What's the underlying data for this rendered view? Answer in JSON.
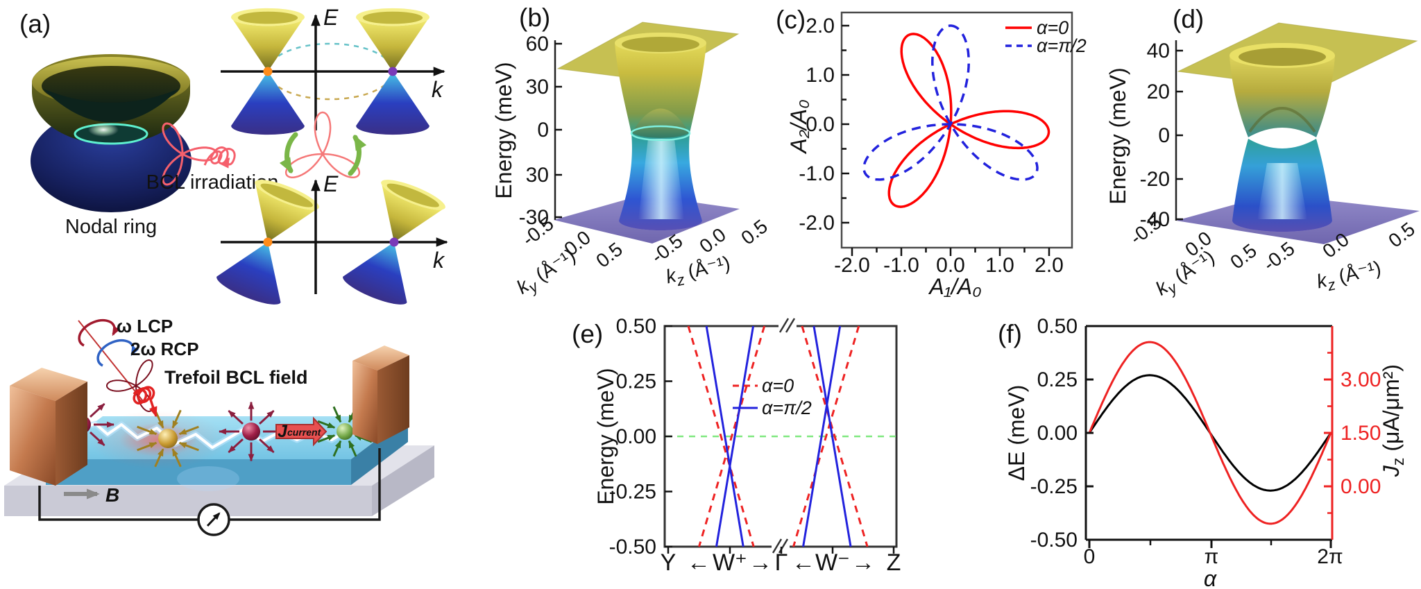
{
  "figure": {
    "background": "#ffffff",
    "accent_red": "#ff0000",
    "accent_blue": "#2222dd",
    "fermi_green": "#7fe87f"
  },
  "panels": {
    "a": {
      "label": "(a)",
      "nodal_ring_caption": "Nodal ring",
      "bcl_caption": "BCL irradiation",
      "diagram_top": {
        "e_label": "E",
        "k_label": "k"
      },
      "diagram_bottom": {
        "e_label": "E",
        "k_label": "k"
      },
      "device": {
        "lcp_label": "ω LCP",
        "rcp_label": "2ω RCP",
        "trefoil_label": "Trefoil BCL field",
        "current_j": "J",
        "current_word": "current",
        "b_label": "B"
      }
    },
    "b": {
      "label": "(b)",
      "z_label": "Energy (meV)",
      "z_ticks": [
        "60",
        "30",
        "0",
        "30",
        "-30"
      ],
      "ky_base": "k",
      "ky_sub": "y",
      "ky_unit": " (Å⁻¹)",
      "kz_base": "k",
      "kz_sub": "z",
      "kz_unit": " (Å⁻¹)",
      "ky_ticks": [
        "-0.5",
        "0.0",
        "0.5"
      ],
      "kz_ticks": [
        "-0.5",
        "0.0",
        "0.5"
      ]
    },
    "c": {
      "label": "(c)",
      "x_label": "A₁/A₀",
      "y_label": "A₂/A₀",
      "x_ticks": [
        "-2.0",
        "-1.0",
        "0.0",
        "1.0",
        "2.0"
      ],
      "y_ticks": [
        "2.0",
        "1.0",
        "0.0",
        "-1.0",
        "-2.0"
      ],
      "legend": [
        {
          "text": "α=0",
          "color": "#ff0000",
          "style": "solid"
        },
        {
          "text": "α=π/2",
          "color": "#2222dd",
          "style": "dashed"
        }
      ]
    },
    "d": {
      "label": "(d)",
      "z_label": "Energy (meV)",
      "z_ticks": [
        "40",
        "20",
        "0",
        "-20",
        "-40"
      ],
      "ky_base": "k",
      "ky_sub": "y",
      "ky_unit": " (Å⁻¹)",
      "kz_base": "k",
      "kz_sub": "z",
      "kz_unit": " (Å⁻¹)",
      "ky_ticks": [
        "-0.5",
        "0.0",
        "0.5"
      ],
      "kz_ticks": [
        "-0.5",
        "0.0",
        "0.5"
      ]
    },
    "e": {
      "label": "(e)",
      "y_label": "Energy (meV)",
      "y_ticks": [
        "0.50",
        "0.25",
        "0.00",
        "-0.25",
        "-0.50"
      ],
      "x_items": [
        "Y",
        "←",
        "W⁺",
        "→",
        "Γ",
        "←",
        "W⁻",
        "→",
        "Z"
      ],
      "legend": [
        {
          "text": "α=0",
          "color": "#ee2222",
          "style": "dashed"
        },
        {
          "text": "α=π/2",
          "color": "#2222dd",
          "style": "solid"
        }
      ]
    },
    "f": {
      "label": "(f)",
      "x_label": "α",
      "x_ticks": [
        "0",
        "π",
        "2π"
      ],
      "left_y_label": "ΔE (meV)",
      "left_y_ticks": [
        "0.50",
        "0.25",
        "0.00",
        "-0.25",
        "-0.50"
      ],
      "right_y_base": "J",
      "right_y_sub": "z",
      "right_y_unit": " (μA/μm²)",
      "right_y_ticks": [
        "3.00",
        "1.50",
        "0.00"
      ]
    }
  },
  "chart_data": [
    {
      "panel": "b",
      "type": "surface3d",
      "zlabel": "Energy (meV)",
      "z_ticks_displayed": [
        "60",
        "30",
        "0",
        "30",
        "-30"
      ],
      "z_range_meV": [
        -30,
        60
      ],
      "xlabel": "ky (Å⁻¹)",
      "ylabel": "kz (Å⁻¹)",
      "x_ticks": [
        -0.5,
        0.0,
        0.5
      ],
      "y_ticks": [
        -0.5,
        0.0,
        0.5
      ],
      "description": "Nodal-ring semimetal band structure: yellow upper band and blue lower band touching along a ring near E=0; clipping planes at E=60 meV (top, yellow) and E=-30 meV (bottom, purple)."
    },
    {
      "panel": "c",
      "type": "parametric-curve",
      "xlabel": "A₁/A₀",
      "ylabel": "A₂/A₀",
      "xlim": [
        -2.35,
        2.35
      ],
      "ylim": [
        -2.35,
        2.35
      ],
      "x_ticks": [
        -2.0,
        -1.0,
        0.0,
        1.0,
        2.0
      ],
      "y_ticks": [
        2.0,
        1.0,
        0.0,
        -1.0,
        -2.0
      ],
      "legend_position": "top-right",
      "series": [
        {
          "name": "α=0",
          "color": "#ff0000",
          "line": "solid",
          "curve": "trefoil",
          "formula": "A1/A0 = cos t + cos 2t ; A2/A0 = sin t - sin 2t",
          "rotation_deg": -5,
          "max_radius": 2.0
        },
        {
          "name": "α=π/2",
          "color": "#2222dd",
          "line": "dashed",
          "curve": "trefoil",
          "formula": "same trefoil rotated by 90 degrees",
          "rotation_deg": 90,
          "max_radius": 2.0
        }
      ]
    },
    {
      "panel": "d",
      "type": "surface3d",
      "zlabel": "Energy (meV)",
      "z_ticks_displayed": [
        "40",
        "20",
        "0",
        "-20",
        "-40"
      ],
      "z_range_meV": [
        -40,
        40
      ],
      "xlabel": "ky (Å⁻¹)",
      "ylabel": "kz (Å⁻¹)",
      "x_ticks": [
        -0.5,
        0.0,
        0.5
      ],
      "y_ticks": [
        -0.5,
        0.0,
        0.5
      ],
      "description": "Band structure under BCL irradiation: upper and lower cones separated by a white lens-shaped gap at E≈0 (gapped nodal ring with remaining touching points)."
    },
    {
      "panel": "e",
      "type": "band-structure",
      "ylabel": "Energy (meV)",
      "ylim": [
        -0.5,
        0.5
      ],
      "y_ticks": [
        0.5,
        0.25,
        0.0,
        -0.25,
        -0.5
      ],
      "x_path": [
        "Y",
        "W⁺",
        "Γ",
        "W⁻",
        "Z"
      ],
      "axis_break_at": "Γ",
      "fermi_line": {
        "energy": 0.0,
        "color": "#7fe87f",
        "style": "dashed"
      },
      "series": [
        {
          "name": "α=0",
          "color": "#ee2222",
          "line": "dashed",
          "inv_velocity": 0.282,
          "weyl_points": [
            {
              "label": "W⁺",
              "x_frac": 0.266,
              "energy_meV": -0.082
            },
            {
              "label": "W⁻",
              "x_frac": 0.715,
              "energy_meV": 0.066
            }
          ]
        },
        {
          "name": "α=π/2",
          "color": "#2222dd",
          "line": "solid",
          "inv_velocity": 0.159,
          "weyl_points": [
            {
              "label": "W⁺",
              "x_frac": 0.281,
              "energy_meV": -0.135
            },
            {
              "label": "W⁻",
              "x_frac": 0.7,
              "energy_meV": 0.145
            }
          ]
        }
      ]
    },
    {
      "panel": "f",
      "type": "line",
      "xlabel": "α",
      "xlim": [
        0,
        6.2832
      ],
      "x_ticks_displayed": [
        "0",
        "π",
        "2π"
      ],
      "left_axis": {
        "label": "ΔE (meV)",
        "ticks": [
          0.5,
          0.25,
          0.0,
          -0.25,
          -0.5
        ],
        "lim": [
          -0.5,
          0.5
        ]
      },
      "right_axis": {
        "label": "Jz (μA/μm²)",
        "ticks": [
          3.0,
          1.5,
          0.0
        ],
        "color": "#ee2222"
      },
      "right_units_per_left_unit": 6,
      "series": [
        {
          "name": "ΔE",
          "axis": "left",
          "color": "#000000",
          "model": "ΔE(α) = 0.27·sin(α) meV",
          "amplitude": 0.27,
          "offset": 0.0,
          "samples_alpha": [
            0,
            1.5708,
            3.1416,
            4.7124,
            6.2832
          ],
          "samples_value": [
            0,
            0.27,
            0,
            -0.27,
            0
          ]
        },
        {
          "name": "Jz",
          "axis": "right",
          "color": "#ee2222",
          "model": "Jz(α) = 1.50 + 2.55·sin(α) μA/μm²",
          "amplitude": 2.55,
          "offset": 1.5,
          "samples_alpha": [
            0,
            1.5708,
            3.1416,
            4.7124,
            6.2832
          ],
          "samples_value": [
            1.5,
            4.05,
            1.5,
            -1.05,
            1.5
          ]
        }
      ]
    }
  ]
}
